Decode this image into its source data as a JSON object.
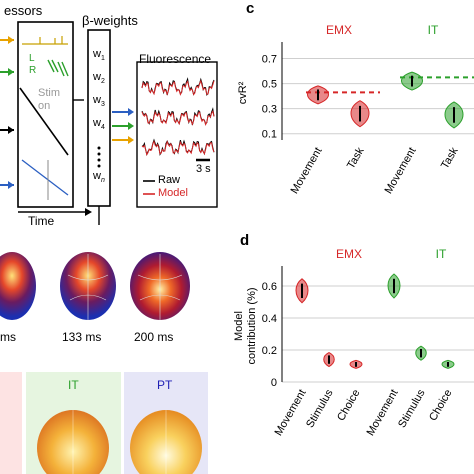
{
  "panel_left": {
    "regressors_title": "essors",
    "beta_title": "β-weights",
    "fluorescence_title": "Fluorescence",
    "time_label": "Time",
    "lick_L": "L",
    "lick_R": "R",
    "stim_on": "Stim\non",
    "weights": [
      "w1",
      "w2",
      "w3",
      "w4",
      "wn"
    ],
    "scale_bar": "3 s",
    "legend_raw": "Raw",
    "legend_model": "Model"
  },
  "brain_maps": {
    "times": [
      "ms",
      "133 ms",
      "200 ms"
    ]
  },
  "bottom_maps": {
    "labels": [
      "IT",
      "PT"
    ]
  },
  "colors": {
    "emx": "#d62728",
    "it": "#2ca02c",
    "pt": "#1f1fb4",
    "model": "#d62728"
  },
  "chart_data": [
    {
      "panel": "c",
      "type": "violin",
      "ylabel": "cvR²",
      "yticks": [
        0.1,
        0.3,
        0.5,
        0.7
      ],
      "ylim": [
        0.05,
        0.8
      ],
      "grid": true,
      "groups": [
        {
          "name": "EMX",
          "color": "#d62728",
          "categories": [
            "Movement",
            "Task"
          ],
          "values": [
            0.41,
            0.26
          ],
          "full_model_line": 0.43
        },
        {
          "name": "IT",
          "color": "#2ca02c",
          "categories": [
            "Movement",
            "Task"
          ],
          "values": [
            0.52,
            0.25
          ],
          "full_model_line": 0.55
        }
      ]
    },
    {
      "panel": "d",
      "type": "violin",
      "ylabel": "Model\ncontribution (%)",
      "yticks": [
        0,
        0.2,
        0.4,
        0.6
      ],
      "ylim": [
        0,
        0.7
      ],
      "grid": true,
      "groups": [
        {
          "name": "EMX",
          "color": "#d62728",
          "categories": [
            "Movement",
            "Stimulus",
            "Choice"
          ],
          "values": [
            0.57,
            0.14,
            0.11
          ]
        },
        {
          "name": "IT",
          "color": "#2ca02c",
          "categories": [
            "Movement",
            "Stimulus",
            "Choice"
          ],
          "values": [
            0.6,
            0.18,
            0.11
          ]
        }
      ]
    }
  ]
}
